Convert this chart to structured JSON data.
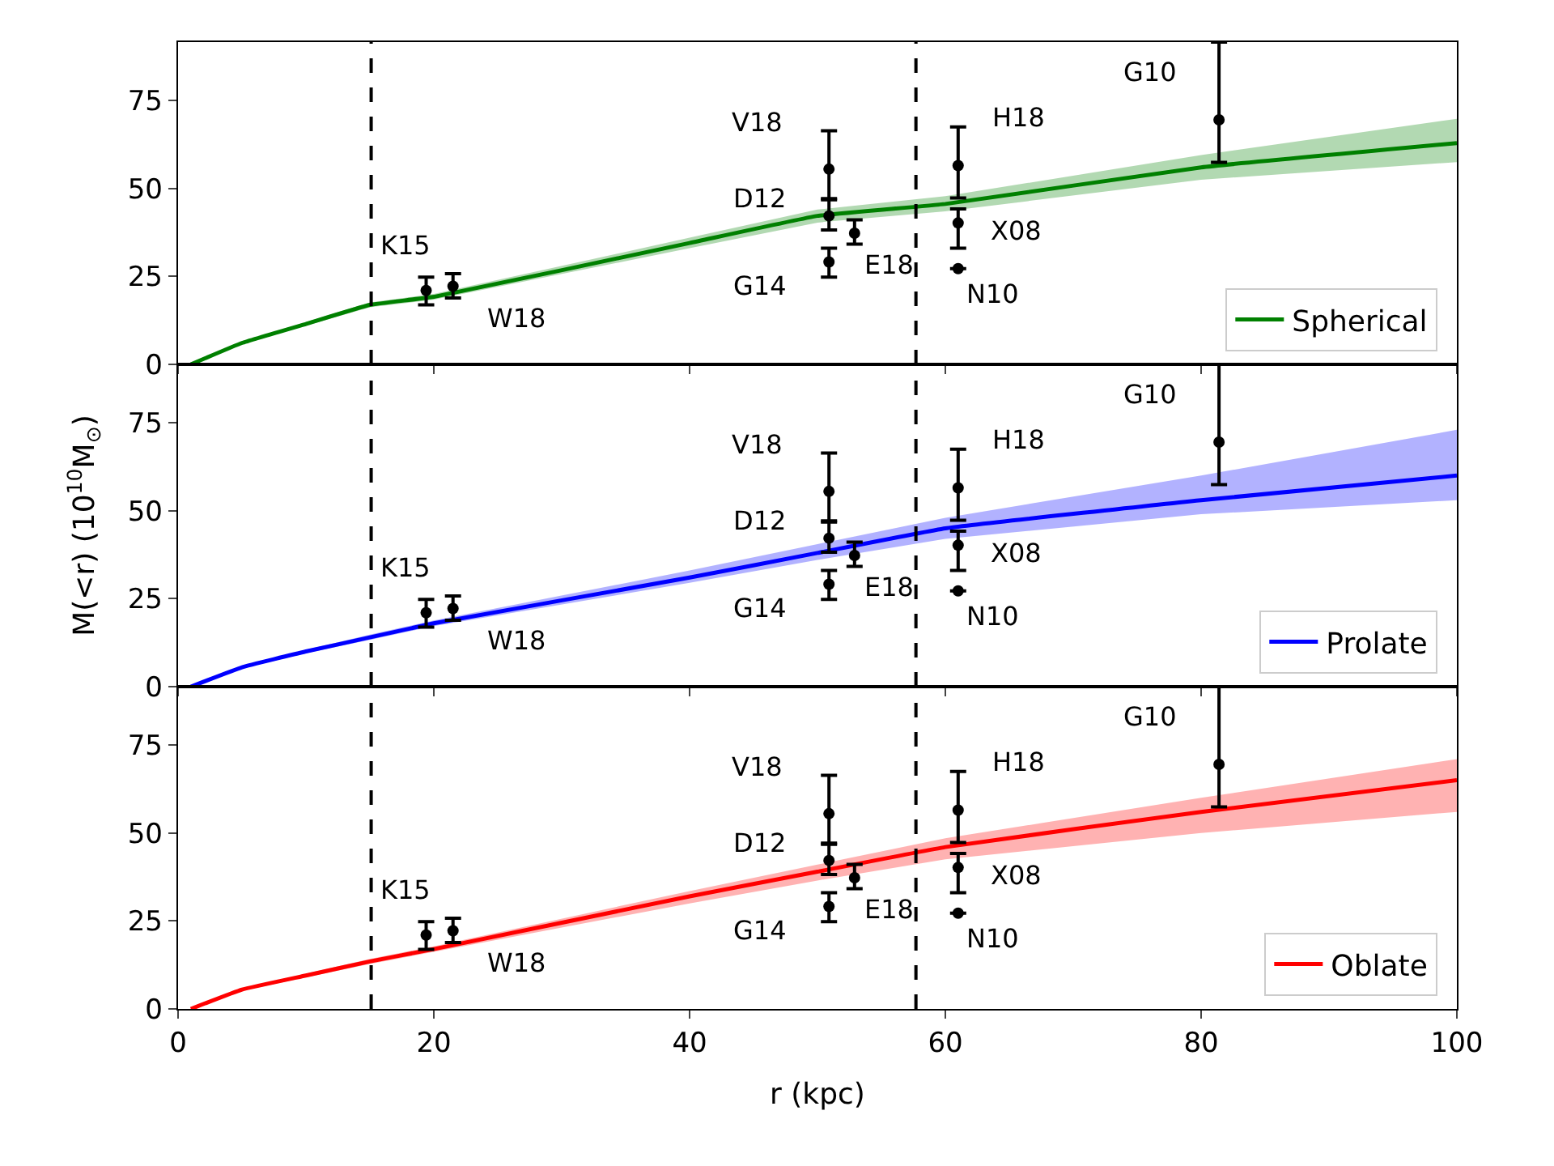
{
  "chart_data": [
    {
      "type": "line",
      "xlim": [
        0,
        100
      ],
      "xticks": [
        0,
        20,
        40,
        60,
        80,
        100
      ],
      "ylim": [
        0,
        91.6
      ],
      "yticks": [
        0,
        25,
        50,
        75
      ],
      "tick_labels": "y",
      "legend": "bottom right",
      "grid": false,
      "series": [
        {
          "name": "Spherical",
          "color": "#008000",
          "x": [
            1,
            5,
            10,
            15,
            20,
            40,
            50,
            60,
            80,
            100
          ],
          "values": [
            0,
            6.1,
            11.5,
            16.9,
            19.2,
            34.5,
            42.2,
            45.6,
            56,
            62.9
          ],
          "lower": [
            0,
            5.8,
            11,
            16.2,
            18.4,
            33,
            40.3,
            43.5,
            52.5,
            57.5
          ],
          "upper": [
            0,
            6.4,
            12,
            17.6,
            20,
            36,
            44,
            47.8,
            59.5,
            69.8
          ]
        },
        {
          "type": "scatter",
          "color": "#000000",
          "marker": "circle",
          "x": [
            19.4,
            21.5,
            50.9,
            50.9,
            50.9,
            52.9,
            61,
            61,
            61,
            81.4
          ],
          "values": [
            21,
            22.2,
            55.5,
            42.2,
            29.1,
            37.3,
            56.5,
            40.2,
            27.2,
            69.5
          ],
          "errors": [
            [
              16.9,
              24.8
            ],
            [
              18.9,
              25.8
            ],
            [
              46.8,
              66.4
            ],
            [
              38.2,
              47.1
            ],
            [
              24.8,
              33
            ],
            [
              34.2,
              41.1
            ],
            [
              47.3,
              67.5
            ],
            [
              33,
              44.2
            ],
            null,
            [
              57.4,
              91.6
            ]
          ]
        }
      ],
      "ref_lines": [
        {
          "axis": "x",
          "value": 15.1,
          "line_style": "dashed",
          "color": "#000000"
        },
        {
          "axis": "x",
          "value": 57.7,
          "line_style": "dashed",
          "color": "#000000"
        }
      ],
      "annotations": [
        {
          "text": "K15",
          "x": 19.4,
          "y": 21
        },
        {
          "text": "W18",
          "x": 21.5,
          "y": 22.2
        },
        {
          "text": "V18",
          "x": 50.9,
          "y": 55.5
        },
        {
          "text": "D12",
          "x": 50.9,
          "y": 42.2
        },
        {
          "text": "G14",
          "x": 50.9,
          "y": 29.1
        },
        {
          "text": "E18",
          "x": 52.9,
          "y": 37.3
        },
        {
          "text": "H18",
          "x": 61,
          "y": 56.5
        },
        {
          "text": "X08",
          "x": 61,
          "y": 40.2
        },
        {
          "text": "N10",
          "x": 61,
          "y": 27.2
        },
        {
          "text": "G10",
          "x": 81.4,
          "y": 69.5
        }
      ]
    },
    {
      "type": "line",
      "xlim": [
        0,
        100
      ],
      "xticks": [
        0,
        20,
        40,
        60,
        80,
        100
      ],
      "ylim": [
        0,
        91.6
      ],
      "yticks": [
        0,
        25,
        50,
        75
      ],
      "tick_labels": "y",
      "legend": "bottom right",
      "grid": false,
      "ylabel": "M(<r) (10$^{10}$M$_{⊙}$)",
      "series": [
        {
          "name": "Prolate",
          "color": "#0000ff",
          "x": [
            1,
            5,
            10,
            15,
            20,
            40,
            50,
            60,
            80,
            100
          ],
          "values": [
            0,
            5.5,
            10,
            14,
            18,
            31,
            38,
            45,
            53,
            60
          ],
          "lower": [
            0,
            5.2,
            9.5,
            13.3,
            17.2,
            29.5,
            36,
            42,
            49,
            53
          ],
          "upper": [
            0,
            5.8,
            10.5,
            14.8,
            18.8,
            33,
            40.5,
            48,
            60,
            73
          ]
        },
        {
          "type": "scatter",
          "color": "#000000",
          "marker": "circle",
          "x": [
            19.4,
            21.5,
            50.9,
            50.9,
            50.9,
            52.9,
            61,
            61,
            61,
            81.4
          ],
          "values": [
            21,
            22.2,
            55.5,
            42.2,
            29.1,
            37.3,
            56.5,
            40.2,
            27.2,
            69.5
          ],
          "errors": [
            [
              16.9,
              24.8
            ],
            [
              18.9,
              25.8
            ],
            [
              46.8,
              66.4
            ],
            [
              38.2,
              47.1
            ],
            [
              24.8,
              33
            ],
            [
              34.2,
              41.1
            ],
            [
              47.3,
              67.5
            ],
            [
              33,
              44.2
            ],
            null,
            [
              57.4,
              91.6
            ]
          ]
        }
      ],
      "ref_lines": [
        {
          "axis": "x",
          "value": 15.1,
          "line_style": "dashed",
          "color": "#000000"
        },
        {
          "axis": "x",
          "value": 57.7,
          "line_style": "dashed",
          "color": "#000000"
        }
      ],
      "annotations": [
        {
          "text": "K15",
          "x": 19.4,
          "y": 21
        },
        {
          "text": "W18",
          "x": 21.5,
          "y": 22.2
        },
        {
          "text": "V18",
          "x": 50.9,
          "y": 55.5
        },
        {
          "text": "D12",
          "x": 50.9,
          "y": 42.2
        },
        {
          "text": "G14",
          "x": 50.9,
          "y": 29.1
        },
        {
          "text": "E18",
          "x": 52.9,
          "y": 37.3
        },
        {
          "text": "H18",
          "x": 61,
          "y": 56.5
        },
        {
          "text": "X08",
          "x": 61,
          "y": 40.2
        },
        {
          "text": "N10",
          "x": 61,
          "y": 27.2
        },
        {
          "text": "G10",
          "x": 81.4,
          "y": 69.5
        }
      ]
    },
    {
      "type": "line",
      "xlim": [
        0,
        100
      ],
      "xticks": [
        0,
        20,
        40,
        60,
        80,
        100
      ],
      "ylim": [
        0,
        91.6
      ],
      "yticks": [
        0,
        25,
        50,
        75
      ],
      "legend": "bottom right",
      "grid": false,
      "xlabel": "r (kpc)",
      "series": [
        {
          "name": "Oblate",
          "color": "#ff0000",
          "x": [
            1,
            5,
            10,
            15,
            20,
            40,
            50,
            60,
            80,
            100
          ],
          "values": [
            0,
            5.5,
            9.5,
            13.5,
            17,
            32,
            39,
            46,
            56,
            65
          ],
          "lower": [
            0,
            5.2,
            9,
            12.8,
            16.2,
            30,
            36.5,
            42.5,
            50,
            56
          ],
          "upper": [
            0,
            5.8,
            10,
            14.2,
            17.8,
            33.5,
            41,
            48.5,
            60,
            71
          ]
        },
        {
          "type": "scatter",
          "color": "#000000",
          "marker": "circle",
          "x": [
            19.4,
            21.5,
            50.9,
            50.9,
            50.9,
            52.9,
            61,
            61,
            61,
            81.4
          ],
          "values": [
            21,
            22.2,
            55.5,
            42.2,
            29.1,
            37.3,
            56.5,
            40.2,
            27.2,
            69.5
          ],
          "errors": [
            [
              16.9,
              24.8
            ],
            [
              18.9,
              25.8
            ],
            [
              46.8,
              66.4
            ],
            [
              38.2,
              47.1
            ],
            [
              24.8,
              33
            ],
            [
              34.2,
              41.1
            ],
            [
              47.3,
              67.5
            ],
            [
              33,
              44.2
            ],
            null,
            [
              57.4,
              91.6
            ]
          ]
        }
      ],
      "ref_lines": [
        {
          "axis": "x",
          "value": 15.1,
          "line_style": "dashed",
          "color": "#000000"
        },
        {
          "axis": "x",
          "value": 57.7,
          "line_style": "dashed",
          "color": "#000000"
        }
      ],
      "annotations": [
        {
          "text": "K15",
          "x": 19.4,
          "y": 21
        },
        {
          "text": "W18",
          "x": 21.5,
          "y": 22.2
        },
        {
          "text": "V18",
          "x": 50.9,
          "y": 55.5
        },
        {
          "text": "D12",
          "x": 50.9,
          "y": 42.2
        },
        {
          "text": "G14",
          "x": 50.9,
          "y": 29.1
        },
        {
          "text": "E18",
          "x": 52.9,
          "y": 37.3
        },
        {
          "text": "H18",
          "x": 61,
          "y": 56.5
        },
        {
          "text": "X08",
          "x": 61,
          "y": 40.2
        },
        {
          "text": "N10",
          "x": 61,
          "y": 27.2
        },
        {
          "text": "G10",
          "x": 81.4,
          "y": 69.5
        }
      ]
    }
  ]
}
